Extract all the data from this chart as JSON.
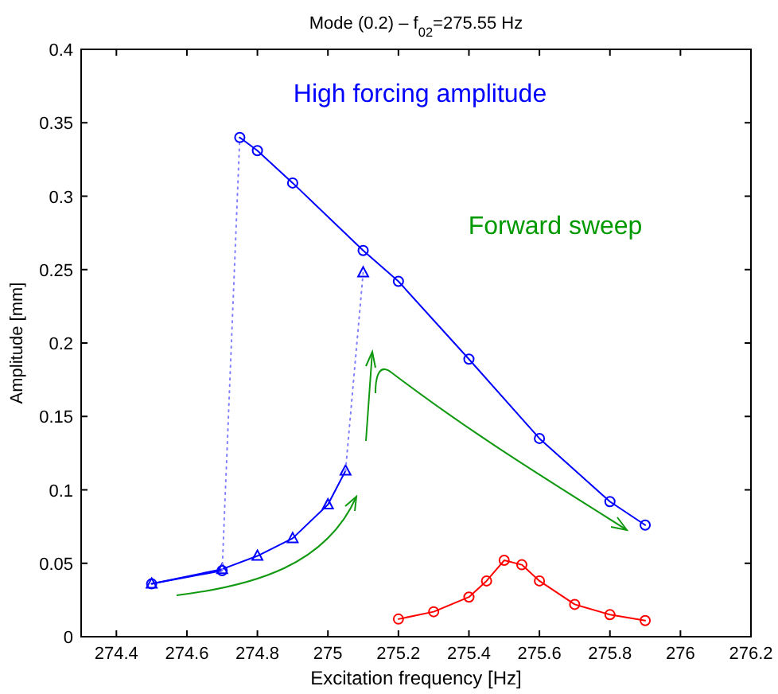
{
  "chart_data": {
    "type": "line",
    "title": "Mode (0.2) – f$_{02}$=275.55 Hz",
    "xlabel": "Excitation frequency [Hz]",
    "ylabel": "Amplitude [mm]",
    "annotations": [
      "High forcing amplitude",
      "Forward sweep"
    ],
    "xlim": [
      274.3,
      276.2
    ],
    "xticks": [
      274.4,
      274.6,
      274.8,
      275,
      275.2,
      275.4,
      275.6,
      275.8,
      276,
      276.2
    ],
    "ylim": [
      0,
      0.4
    ],
    "yticks": [
      0,
      0.05,
      0.1,
      0.15,
      0.2,
      0.25,
      0.3,
      0.35,
      0.4
    ],
    "grid": false,
    "series": [
      {
        "color": "#0000ff",
        "marker": "circle",
        "line_style": "solid",
        "x": [
          274.5,
          274.7
        ],
        "values": [
          0.036,
          0.045
        ]
      },
      {
        "color": "#0000ff",
        "marker": "triangle",
        "line_style": "solid",
        "x": [
          274.5,
          274.7,
          274.8,
          274.9,
          275,
          275.05
        ],
        "values": [
          0.036,
          0.046,
          0.055,
          0.067,
          0.09,
          0.113
        ]
      },
      {
        "color": "#0000ff",
        "marker": "triangle",
        "line_style": "solid",
        "x": [
          275.1
        ],
        "values": [
          0.248
        ]
      },
      {
        "color": "#8080ff",
        "marker": "none",
        "line_style": "dotted",
        "x": [
          275.05,
          275.1
        ],
        "values": [
          0.113,
          0.248
        ]
      },
      {
        "color": "#8080ff",
        "marker": "none",
        "line_style": "dotted",
        "x": [
          274.7,
          274.75
        ],
        "values": [
          0.045,
          0.34
        ]
      },
      {
        "color": "#0000ff",
        "marker": "circle",
        "line_style": "solid",
        "x": [
          274.75,
          274.8,
          274.9,
          275.1,
          275.2,
          275.4,
          275.6,
          275.8,
          275.9
        ],
        "values": [
          0.34,
          0.331,
          0.309,
          0.263,
          0.242,
          0.189,
          0.135,
          0.092,
          0.076
        ]
      },
      {
        "color": "#ff0000",
        "marker": "circle",
        "line_style": "solid",
        "x": [
          275.2,
          275.3,
          275.4,
          275.45,
          275.5,
          275.55,
          275.6,
          275.7,
          275.8,
          275.9
        ],
        "values": [
          0.012,
          0.017,
          0.027,
          0.038,
          0.052,
          0.049,
          0.038,
          0.022,
          0.015,
          0.011
        ]
      }
    ]
  }
}
